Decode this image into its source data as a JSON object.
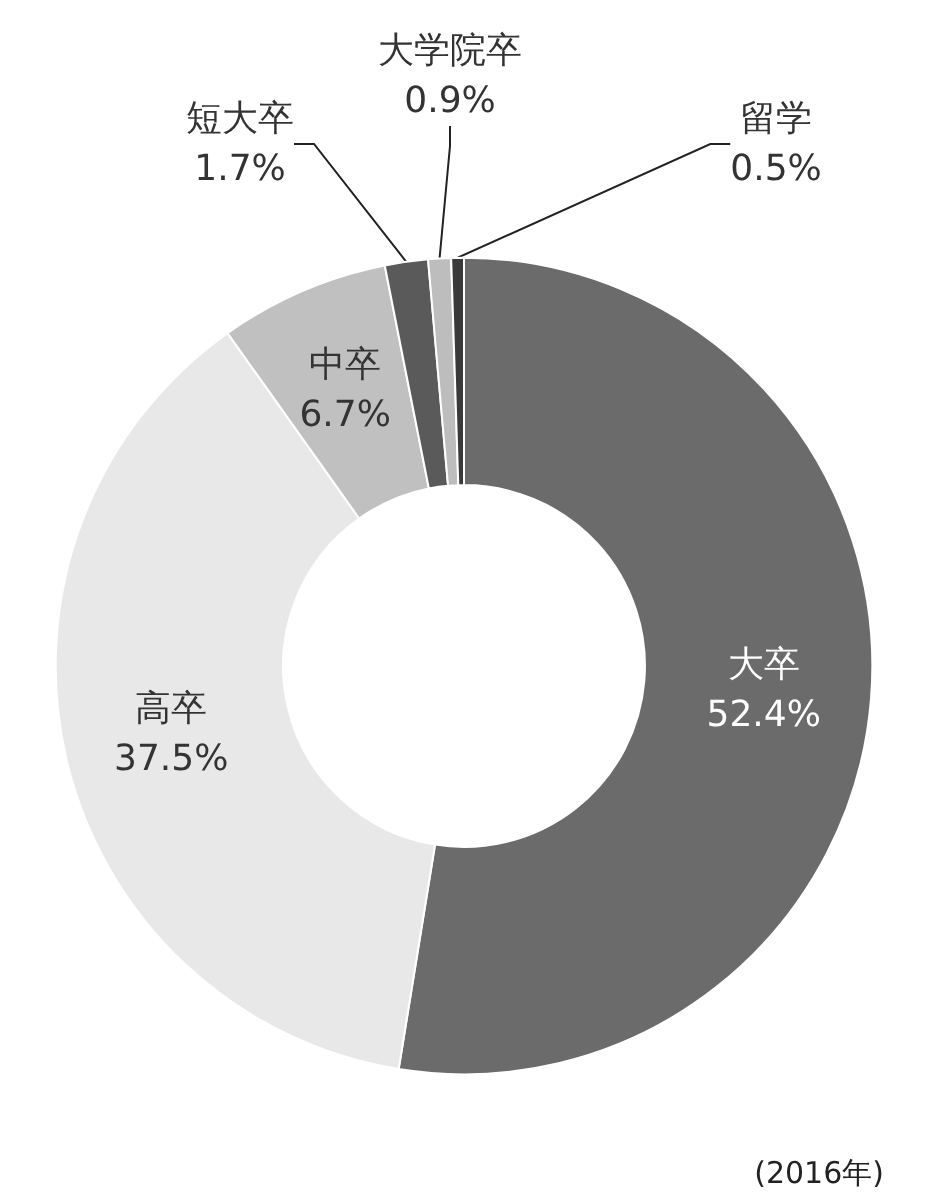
{
  "chart_data": {
    "type": "donut",
    "categories": [
      "大卒",
      "高卒",
      "中卒",
      "短大卒",
      "大学院卒",
      "留学"
    ],
    "values": [
      52.4,
      37.5,
      6.7,
      1.7,
      0.9,
      0.5
    ],
    "value_labels": [
      "52.4%",
      "37.5%",
      "6.7%",
      "1.7%",
      "0.9%",
      "0.5%"
    ],
    "colors": [
      "#6b6b6b",
      "#e8e8e8",
      "#c0c0c0",
      "#5a5a5a",
      "#bdbdbd",
      "#3a3a3a"
    ],
    "annotations": [
      "(2016年)"
    ]
  }
}
